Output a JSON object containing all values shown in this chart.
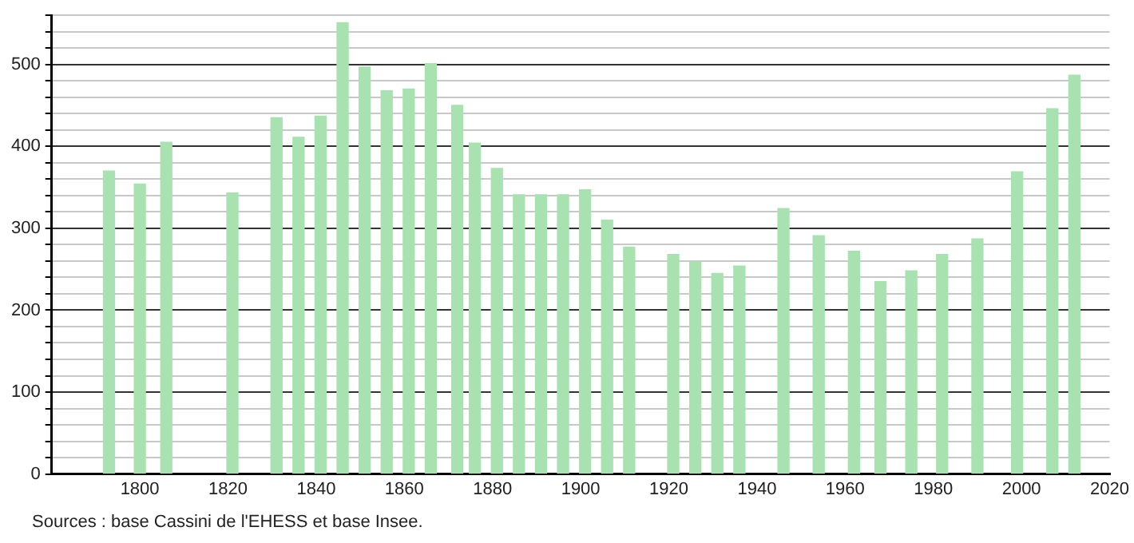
{
  "chart_data": {
    "type": "bar",
    "color": "#a8e2b0",
    "x": [
      1793,
      1800,
      1806,
      1821,
      1831,
      1836,
      1841,
      1846,
      1851,
      1856,
      1861,
      1866,
      1872,
      1876,
      1881,
      1886,
      1891,
      1896,
      1901,
      1906,
      1911,
      1921,
      1926,
      1931,
      1936,
      1946,
      1954,
      1962,
      1968,
      1975,
      1982,
      1990,
      1999,
      2007,
      2012
    ],
    "values": [
      370,
      354,
      405,
      343,
      435,
      411,
      437,
      551,
      497,
      468,
      470,
      501,
      450,
      404,
      373,
      341,
      341,
      341,
      347,
      310,
      277,
      268,
      259,
      245,
      254,
      324,
      291,
      272,
      235,
      248,
      268,
      287,
      369,
      446,
      487
    ],
    "xlim": [
      1780,
      2020
    ],
    "xticks": [
      1800,
      1820,
      1840,
      1860,
      1880,
      1900,
      1920,
      1940,
      1960,
      1980,
      2000,
      2020
    ],
    "ylim": [
      0,
      560
    ],
    "yticks": [
      0,
      {
        "value": 20,
        "label": null
      },
      {
        "value": 40,
        "label": null
      },
      {
        "value": 60,
        "label": null
      },
      {
        "value": 80,
        "label": null
      },
      100,
      {
        "value": 120,
        "label": null
      },
      {
        "value": 140,
        "label": null
      },
      {
        "value": 160,
        "label": null
      },
      {
        "value": 180,
        "label": null
      },
      200,
      {
        "value": 220,
        "label": null
      },
      {
        "value": 240,
        "label": null
      },
      {
        "value": 260,
        "label": null
      },
      {
        "value": 280,
        "label": null
      },
      300,
      {
        "value": 320,
        "label": null
      },
      {
        "value": 340,
        "label": null
      },
      {
        "value": 360,
        "label": null
      },
      {
        "value": 380,
        "label": null
      },
      400,
      {
        "value": 420,
        "label": null
      },
      {
        "value": 440,
        "label": null
      },
      {
        "value": 460,
        "label": null
      },
      {
        "value": 480,
        "label": null
      },
      500,
      {
        "value": 520,
        "label": null
      },
      {
        "value": 540,
        "label": null
      },
      {
        "value": 560,
        "label": null
      }
    ],
    "grid": "y",
    "annotations": [
      "Sources : base Cassini de l'EHESS et base Insee."
    ]
  }
}
